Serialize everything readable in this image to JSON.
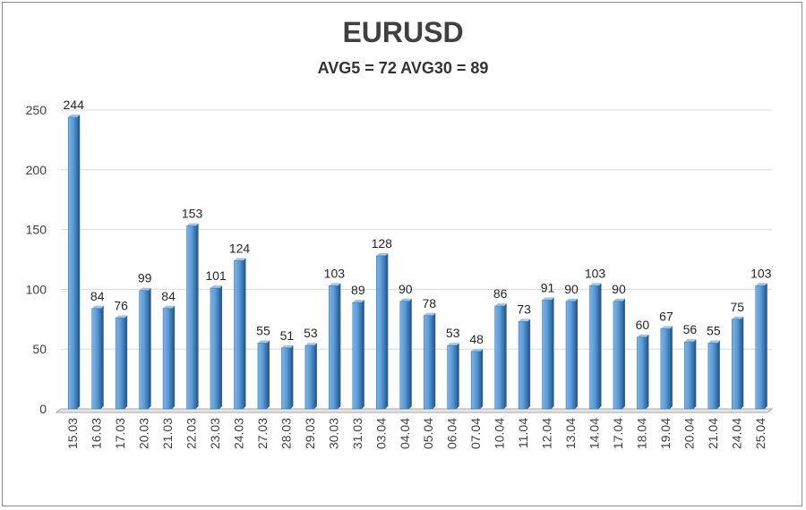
{
  "chart_data": {
    "type": "bar",
    "title": "EURUSD",
    "subtitle": "AVG5 = 72 AVG30 = 89",
    "categories": [
      "15.03",
      "16.03",
      "17.03",
      "20.03",
      "21.03",
      "22.03",
      "23.03",
      "24.03",
      "27.03",
      "28.03",
      "29.03",
      "30.03",
      "31.03",
      "03.04",
      "04.04",
      "05.04",
      "06.04",
      "07.04",
      "10.04",
      "11.04",
      "12.04",
      "13.04",
      "14.04",
      "17.04",
      "18.04",
      "19.04",
      "20.04",
      "21.04",
      "24.04",
      "25.04"
    ],
    "values": [
      244,
      84,
      76,
      99,
      84,
      153,
      101,
      124,
      55,
      51,
      53,
      103,
      89,
      128,
      90,
      78,
      53,
      48,
      86,
      73,
      91,
      90,
      103,
      90,
      60,
      67,
      56,
      55,
      75,
      103
    ],
    "ylim": [
      0,
      250
    ],
    "yticks": [
      0,
      50,
      100,
      150,
      200,
      250
    ],
    "grid": true,
    "bar_color": "#5b9bd5",
    "data_labels": true
  }
}
